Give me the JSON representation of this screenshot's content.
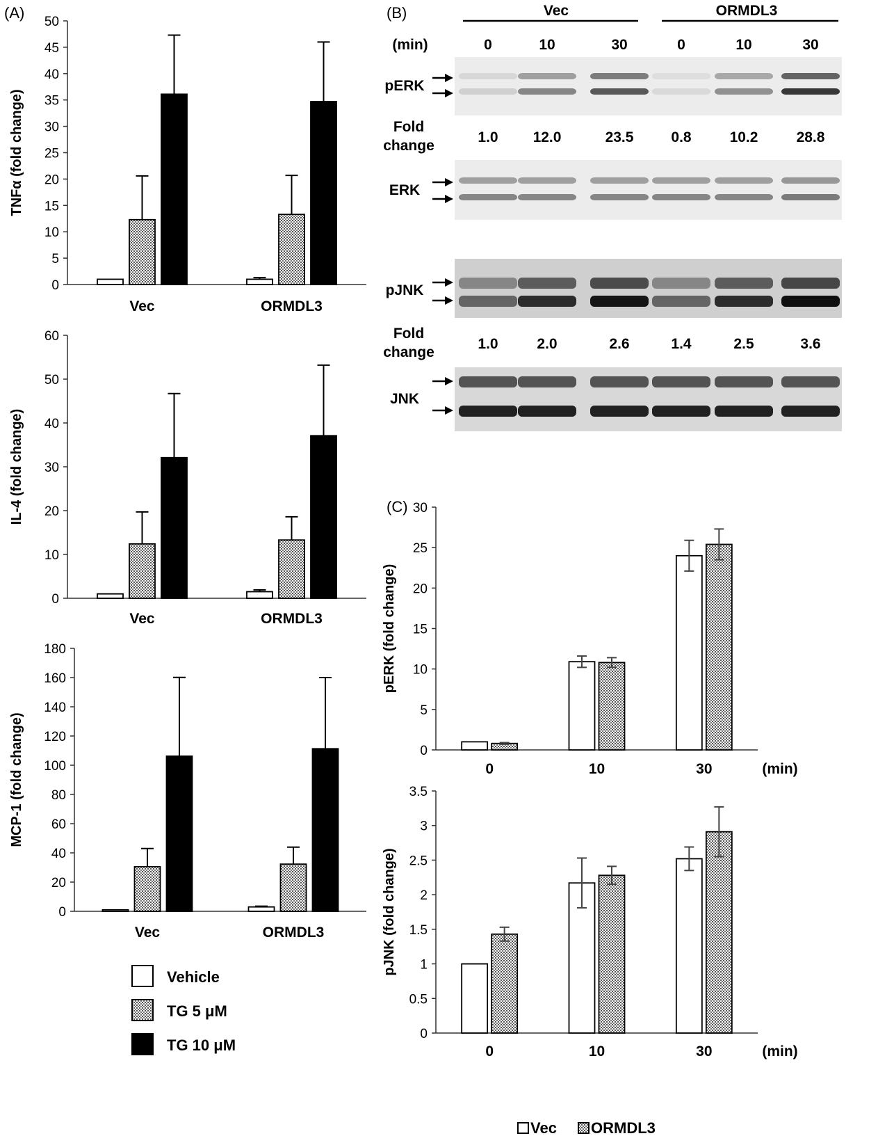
{
  "colors": {
    "tg10": "#000000",
    "vehicle": "#ffffff",
    "dots": "#555555",
    "err_c": "#444444"
  },
  "panel_a": {
    "label": "(A)",
    "legend": [
      {
        "label": "Vehicle",
        "pattern": "white"
      },
      {
        "label": "TG 5 μM",
        "pattern": "dots"
      },
      {
        "label": "TG 10 μM",
        "pattern": "black"
      }
    ]
  },
  "panel_b": {
    "label": "(B)",
    "groups": [
      "Vec",
      "ORMDL3"
    ],
    "time_label": "(min)",
    "times": [
      "0",
      "10",
      "30",
      "0",
      "10",
      "30"
    ],
    "blots": [
      {
        "name": "pERK",
        "bands": 2,
        "intensity": [
          0.12,
          0.45,
          0.65,
          0.08,
          0.4,
          0.8
        ]
      },
      {
        "name": "ERK",
        "bands": 2,
        "intensity": [
          0.45,
          0.45,
          0.45,
          0.45,
          0.45,
          0.5
        ]
      },
      {
        "name": "pJNK",
        "bands": 2,
        "intensity": [
          0.6,
          0.85,
          0.95,
          0.6,
          0.85,
          0.98
        ]
      },
      {
        "name": "JNK",
        "bands": 2,
        "intensity": [
          0.9,
          0.9,
          0.9,
          0.9,
          0.9,
          0.9
        ]
      }
    ],
    "fold_rows": [
      {
        "label_1": "Fold",
        "label_2": "change",
        "values": [
          "1.0",
          "12.0",
          "23.5",
          "0.8",
          "10.2",
          "28.8"
        ]
      },
      {
        "label_1": "Fold",
        "label_2": "change",
        "values": [
          "1.0",
          "2.0",
          "2.6",
          "1.4",
          "2.5",
          "3.6"
        ]
      }
    ]
  },
  "panel_c": {
    "label": "(C)",
    "legend": [
      {
        "label": "Vec",
        "pattern": "white"
      },
      {
        "label": "ORMDL3",
        "pattern": "dots"
      }
    ]
  },
  "chart_data": [
    {
      "type": "bar",
      "panel": "A",
      "title": "",
      "categories": [
        "Vec",
        "ORMDL3"
      ],
      "ylabel": "TNFα (fold change)",
      "xlabel": "",
      "ylim": [
        0,
        50
      ],
      "yticks": [
        "0",
        "5",
        "10",
        "15",
        "20",
        "25",
        "30",
        "35",
        "40",
        "45",
        "50"
      ],
      "series": [
        {
          "name": "Vehicle",
          "pattern": "white",
          "values": [
            1,
            1
          ],
          "errors": [
            0,
            0.3
          ]
        },
        {
          "name": "TG 5 μM",
          "pattern": "dots",
          "values": [
            12.3,
            13.3
          ],
          "errors": [
            8.3,
            7.4
          ]
        },
        {
          "name": "TG 10 μM",
          "pattern": "black",
          "values": [
            36.1,
            34.7
          ],
          "errors": [
            11.2,
            11.3
          ]
        }
      ]
    },
    {
      "type": "bar",
      "panel": "A",
      "title": "",
      "categories": [
        "Vec",
        "ORMDL3"
      ],
      "ylabel": "IL-4 (fold change)",
      "xlabel": "",
      "ylim": [
        0,
        60
      ],
      "yticks": [
        "0",
        "10",
        "20",
        "30",
        "40",
        "50",
        "60"
      ],
      "series": [
        {
          "name": "Vehicle",
          "pattern": "white",
          "values": [
            1,
            1.5
          ],
          "errors": [
            0,
            0.4
          ]
        },
        {
          "name": "TG 5 μM",
          "pattern": "dots",
          "values": [
            12.4,
            13.3
          ],
          "errors": [
            7.3,
            5.3
          ]
        },
        {
          "name": "TG 10 μM",
          "pattern": "black",
          "values": [
            32.1,
            37.1
          ],
          "errors": [
            14.6,
            16.1
          ]
        }
      ]
    },
    {
      "type": "bar",
      "panel": "A",
      "title": "",
      "categories": [
        "Vec",
        "ORMDL3"
      ],
      "ylabel": "MCP-1 (fold change)",
      "xlabel": "",
      "ylim": [
        0,
        180
      ],
      "yticks": [
        "0",
        "20",
        "40",
        "60",
        "80",
        "100",
        "120",
        "140",
        "160",
        "180"
      ],
      "series": [
        {
          "name": "Vehicle",
          "pattern": "white",
          "values": [
            1,
            3
          ],
          "errors": [
            0,
            0.5
          ]
        },
        {
          "name": "TG 5 μM",
          "pattern": "dots",
          "values": [
            30.5,
            32.3
          ],
          "errors": [
            12.5,
            11.6
          ]
        },
        {
          "name": "TG 10 μM",
          "pattern": "black",
          "values": [
            106.2,
            111.3
          ],
          "errors": [
            53.9,
            48.7
          ]
        }
      ]
    },
    {
      "type": "bar",
      "panel": "C",
      "title": "",
      "categories": [
        "0",
        "10",
        "30"
      ],
      "ylabel": "pERK (fold change)",
      "xlabel": "(min)",
      "ylim": [
        0,
        30
      ],
      "yticks": [
        "0",
        "5",
        "10",
        "15",
        "20",
        "25",
        "30"
      ],
      "series": [
        {
          "name": "Vec",
          "pattern": "white",
          "values": [
            1.0,
            10.9,
            24.0
          ],
          "errors": [
            0,
            0.7,
            1.9
          ]
        },
        {
          "name": "ORMDL3",
          "pattern": "dots",
          "values": [
            0.8,
            10.8,
            25.4
          ],
          "errors": [
            0.1,
            0.6,
            1.9
          ]
        }
      ]
    },
    {
      "type": "bar",
      "panel": "C",
      "title": "",
      "categories": [
        "0",
        "10",
        "30"
      ],
      "ylabel": "pJNK (fold change)",
      "xlabel": "(min)",
      "ylim": [
        0,
        3.5
      ],
      "yticks": [
        "0",
        "0.5",
        "1",
        "1.5",
        "2",
        "2.5",
        "3",
        "3.5"
      ],
      "series": [
        {
          "name": "Vec",
          "pattern": "white",
          "values": [
            1.0,
            2.17,
            2.52
          ],
          "errors": [
            0,
            0.36,
            0.17
          ]
        },
        {
          "name": "ORMDL3",
          "pattern": "dots",
          "values": [
            1.43,
            2.28,
            2.91
          ],
          "errors": [
            0.1,
            0.13,
            0.36
          ]
        }
      ]
    }
  ]
}
